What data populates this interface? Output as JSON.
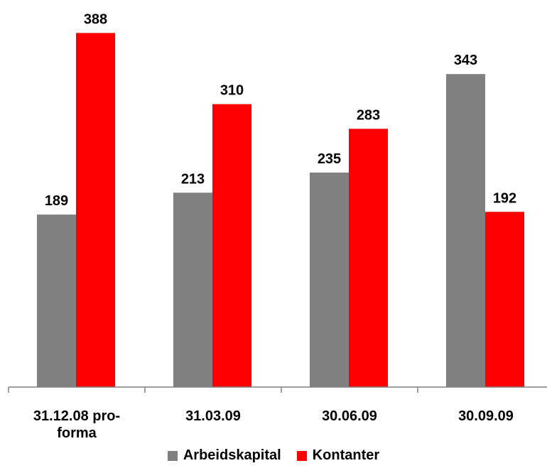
{
  "chart_data": {
    "type": "bar",
    "categories": [
      [
        "31.12.08 pro-",
        "forma"
      ],
      [
        "31.03.09"
      ],
      [
        "30.06.09"
      ],
      [
        "30.09.09"
      ]
    ],
    "series": [
      {
        "name": "Arbeidskapital",
        "color": "#808080",
        "values": [
          189,
          213,
          235,
          343
        ]
      },
      {
        "name": "Kontanter",
        "color": "#ff0000",
        "values": [
          388,
          310,
          283,
          192
        ]
      }
    ],
    "ylim": [
      0,
      400
    ],
    "grid": false,
    "legend_position": "bottom-center"
  }
}
